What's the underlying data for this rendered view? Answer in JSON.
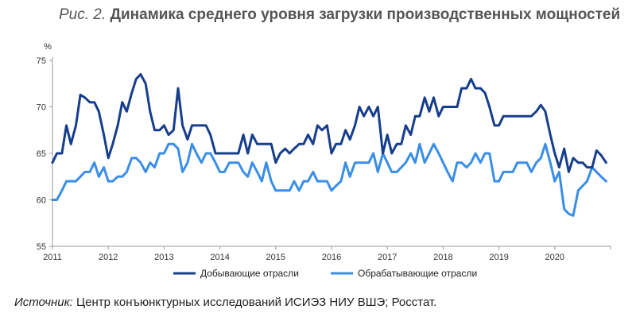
{
  "figure": {
    "label": "Рис. 2.",
    "title": "Динамика среднего уровня загрузки производственных мощностей"
  },
  "source": {
    "label": "Источник:",
    "text": "Центр конъюнктурных исследований ИСИЭЗ НИУ ВШЭ; Росстат."
  },
  "chart_data": {
    "type": "line",
    "ylabel": "%",
    "xlabel": "",
    "ylim": [
      55,
      75
    ],
    "yticks": [
      55,
      60,
      65,
      70,
      75
    ],
    "xlim": [
      2011,
      2021
    ],
    "xticks": [
      "2011",
      "2012",
      "2013",
      "2014",
      "2015",
      "2016",
      "2017",
      "2018",
      "2019",
      "2020"
    ],
    "grid": false,
    "legend_position": "bottom",
    "series": [
      {
        "name": "Добывающие отрасли",
        "color": "#163e8c",
        "points": [
          [
            2011.0,
            64
          ],
          [
            2011.08,
            65
          ],
          [
            2011.17,
            65
          ],
          [
            2011.25,
            68
          ],
          [
            2011.33,
            66
          ],
          [
            2011.42,
            68
          ],
          [
            2011.5,
            71.3
          ],
          [
            2011.58,
            71
          ],
          [
            2011.67,
            70.5
          ],
          [
            2011.75,
            70.5
          ],
          [
            2011.83,
            69.5
          ],
          [
            2011.92,
            67
          ],
          [
            2012.0,
            64.5
          ],
          [
            2012.08,
            66
          ],
          [
            2012.17,
            68
          ],
          [
            2012.25,
            70.5
          ],
          [
            2012.33,
            69.5
          ],
          [
            2012.42,
            71.5
          ],
          [
            2012.5,
            73
          ],
          [
            2012.58,
            73.5
          ],
          [
            2012.67,
            72.5
          ],
          [
            2012.75,
            69.5
          ],
          [
            2012.83,
            67.5
          ],
          [
            2012.92,
            67.5
          ],
          [
            2013.0,
            68
          ],
          [
            2013.08,
            67
          ],
          [
            2013.17,
            67.5
          ],
          [
            2013.25,
            72
          ],
          [
            2013.33,
            68
          ],
          [
            2013.42,
            66.5
          ],
          [
            2013.5,
            68
          ],
          [
            2013.58,
            68
          ],
          [
            2013.67,
            68
          ],
          [
            2013.75,
            68
          ],
          [
            2013.83,
            67
          ],
          [
            2013.92,
            65
          ],
          [
            2014.0,
            65
          ],
          [
            2014.08,
            65
          ],
          [
            2014.17,
            65
          ],
          [
            2014.25,
            65
          ],
          [
            2014.33,
            65
          ],
          [
            2014.42,
            67
          ],
          [
            2014.5,
            65
          ],
          [
            2014.58,
            67
          ],
          [
            2014.67,
            66
          ],
          [
            2014.75,
            66
          ],
          [
            2014.83,
            66
          ],
          [
            2014.92,
            66
          ],
          [
            2015.0,
            64
          ],
          [
            2015.08,
            65
          ],
          [
            2015.17,
            65.5
          ],
          [
            2015.25,
            65
          ],
          [
            2015.33,
            65.5
          ],
          [
            2015.42,
            66
          ],
          [
            2015.5,
            66
          ],
          [
            2015.58,
            67
          ],
          [
            2015.67,
            66
          ],
          [
            2015.75,
            68
          ],
          [
            2015.83,
            67.5
          ],
          [
            2015.92,
            68
          ],
          [
            2016.0,
            65
          ],
          [
            2016.08,
            66
          ],
          [
            2016.17,
            66
          ],
          [
            2016.25,
            67.5
          ],
          [
            2016.33,
            66.5
          ],
          [
            2016.42,
            68
          ],
          [
            2016.5,
            70
          ],
          [
            2016.58,
            69
          ],
          [
            2016.67,
            70
          ],
          [
            2016.75,
            69
          ],
          [
            2016.83,
            70
          ],
          [
            2016.92,
            65
          ],
          [
            2017.0,
            67
          ],
          [
            2017.08,
            65
          ],
          [
            2017.17,
            66
          ],
          [
            2017.25,
            66
          ],
          [
            2017.33,
            68
          ],
          [
            2017.42,
            67
          ],
          [
            2017.5,
            69
          ],
          [
            2017.58,
            69
          ],
          [
            2017.67,
            71
          ],
          [
            2017.75,
            69.5
          ],
          [
            2017.83,
            71
          ],
          [
            2017.92,
            69
          ],
          [
            2018.0,
            70
          ],
          [
            2018.08,
            70
          ],
          [
            2018.17,
            70
          ],
          [
            2018.25,
            70
          ],
          [
            2018.33,
            72
          ],
          [
            2018.42,
            72
          ],
          [
            2018.5,
            73
          ],
          [
            2018.58,
            72
          ],
          [
            2018.67,
            72
          ],
          [
            2018.75,
            71.5
          ],
          [
            2018.83,
            70
          ],
          [
            2018.92,
            68
          ],
          [
            2019.0,
            68
          ],
          [
            2019.08,
            69
          ],
          [
            2019.17,
            69
          ],
          [
            2019.25,
            69
          ],
          [
            2019.33,
            69
          ],
          [
            2019.42,
            69
          ],
          [
            2019.5,
            69
          ],
          [
            2019.58,
            69
          ],
          [
            2019.67,
            69.5
          ],
          [
            2019.75,
            70.2
          ],
          [
            2019.83,
            69.5
          ],
          [
            2019.92,
            67
          ],
          [
            2020.0,
            65
          ],
          [
            2020.08,
            63.5
          ],
          [
            2020.17,
            65.5
          ],
          [
            2020.25,
            63
          ],
          [
            2020.33,
            64.5
          ],
          [
            2020.42,
            64
          ],
          [
            2020.5,
            64
          ],
          [
            2020.58,
            63.5
          ],
          [
            2020.67,
            63.5
          ],
          [
            2020.75,
            65.3
          ],
          [
            2020.83,
            64.8
          ],
          [
            2020.92,
            64
          ]
        ]
      },
      {
        "name": "Обрабатывающие отрасли",
        "color": "#3a8ee6",
        "points": [
          [
            2011.0,
            60
          ],
          [
            2011.08,
            60
          ],
          [
            2011.17,
            61
          ],
          [
            2011.25,
            62
          ],
          [
            2011.33,
            62
          ],
          [
            2011.42,
            62
          ],
          [
            2011.5,
            62.5
          ],
          [
            2011.58,
            63
          ],
          [
            2011.67,
            63
          ],
          [
            2011.75,
            64
          ],
          [
            2011.83,
            62.5
          ],
          [
            2011.92,
            63.5
          ],
          [
            2012.0,
            62
          ],
          [
            2012.08,
            62
          ],
          [
            2012.17,
            62.5
          ],
          [
            2012.25,
            62.5
          ],
          [
            2012.33,
            63
          ],
          [
            2012.42,
            64.5
          ],
          [
            2012.5,
            64.5
          ],
          [
            2012.58,
            64
          ],
          [
            2012.67,
            63
          ],
          [
            2012.75,
            64
          ],
          [
            2012.83,
            63.5
          ],
          [
            2012.92,
            65
          ],
          [
            2013.0,
            65
          ],
          [
            2013.08,
            66
          ],
          [
            2013.17,
            66
          ],
          [
            2013.25,
            65.5
          ],
          [
            2013.33,
            63
          ],
          [
            2013.42,
            64
          ],
          [
            2013.5,
            66
          ],
          [
            2013.58,
            65
          ],
          [
            2013.67,
            64
          ],
          [
            2013.75,
            65
          ],
          [
            2013.83,
            65
          ],
          [
            2013.92,
            64
          ],
          [
            2014.0,
            63
          ],
          [
            2014.08,
            63
          ],
          [
            2014.17,
            64
          ],
          [
            2014.25,
            64
          ],
          [
            2014.33,
            64
          ],
          [
            2014.42,
            63
          ],
          [
            2014.5,
            62.5
          ],
          [
            2014.58,
            64
          ],
          [
            2014.67,
            63
          ],
          [
            2014.75,
            62
          ],
          [
            2014.83,
            64
          ],
          [
            2014.92,
            62
          ],
          [
            2015.0,
            61
          ],
          [
            2015.08,
            61
          ],
          [
            2015.17,
            61
          ],
          [
            2015.25,
            61
          ],
          [
            2015.33,
            62
          ],
          [
            2015.42,
            61
          ],
          [
            2015.5,
            62
          ],
          [
            2015.58,
            62
          ],
          [
            2015.67,
            63
          ],
          [
            2015.75,
            62
          ],
          [
            2015.83,
            62
          ],
          [
            2015.92,
            62
          ],
          [
            2016.0,
            61
          ],
          [
            2016.08,
            61.5
          ],
          [
            2016.17,
            62
          ],
          [
            2016.25,
            64
          ],
          [
            2016.33,
            62.5
          ],
          [
            2016.42,
            64
          ],
          [
            2016.5,
            64
          ],
          [
            2016.58,
            64
          ],
          [
            2016.67,
            64
          ],
          [
            2016.75,
            65
          ],
          [
            2016.83,
            63
          ],
          [
            2016.92,
            65
          ],
          [
            2017.0,
            64
          ],
          [
            2017.08,
            63
          ],
          [
            2017.17,
            63
          ],
          [
            2017.25,
            63.5
          ],
          [
            2017.33,
            64
          ],
          [
            2017.42,
            65
          ],
          [
            2017.5,
            64
          ],
          [
            2017.58,
            66
          ],
          [
            2017.67,
            64
          ],
          [
            2017.75,
            65
          ],
          [
            2017.83,
            66
          ],
          [
            2017.92,
            65
          ],
          [
            2018.0,
            64
          ],
          [
            2018.08,
            63
          ],
          [
            2018.17,
            62
          ],
          [
            2018.25,
            64
          ],
          [
            2018.33,
            64
          ],
          [
            2018.42,
            63.5
          ],
          [
            2018.5,
            64
          ],
          [
            2018.58,
            65
          ],
          [
            2018.67,
            64
          ],
          [
            2018.75,
            65
          ],
          [
            2018.83,
            65
          ],
          [
            2018.92,
            62
          ],
          [
            2019.0,
            62
          ],
          [
            2019.08,
            63
          ],
          [
            2019.17,
            63
          ],
          [
            2019.25,
            63
          ],
          [
            2019.33,
            64
          ],
          [
            2019.42,
            64
          ],
          [
            2019.5,
            64
          ],
          [
            2019.58,
            63
          ],
          [
            2019.67,
            64
          ],
          [
            2019.75,
            64.5
          ],
          [
            2019.83,
            66
          ],
          [
            2019.92,
            64
          ],
          [
            2020.0,
            62
          ],
          [
            2020.08,
            63
          ],
          [
            2020.17,
            59
          ],
          [
            2020.25,
            58.5
          ],
          [
            2020.33,
            58.3
          ],
          [
            2020.42,
            61
          ],
          [
            2020.5,
            61.5
          ],
          [
            2020.58,
            62
          ],
          [
            2020.67,
            63.5
          ],
          [
            2020.75,
            63
          ],
          [
            2020.83,
            62.5
          ],
          [
            2020.92,
            62
          ]
        ]
      }
    ]
  }
}
